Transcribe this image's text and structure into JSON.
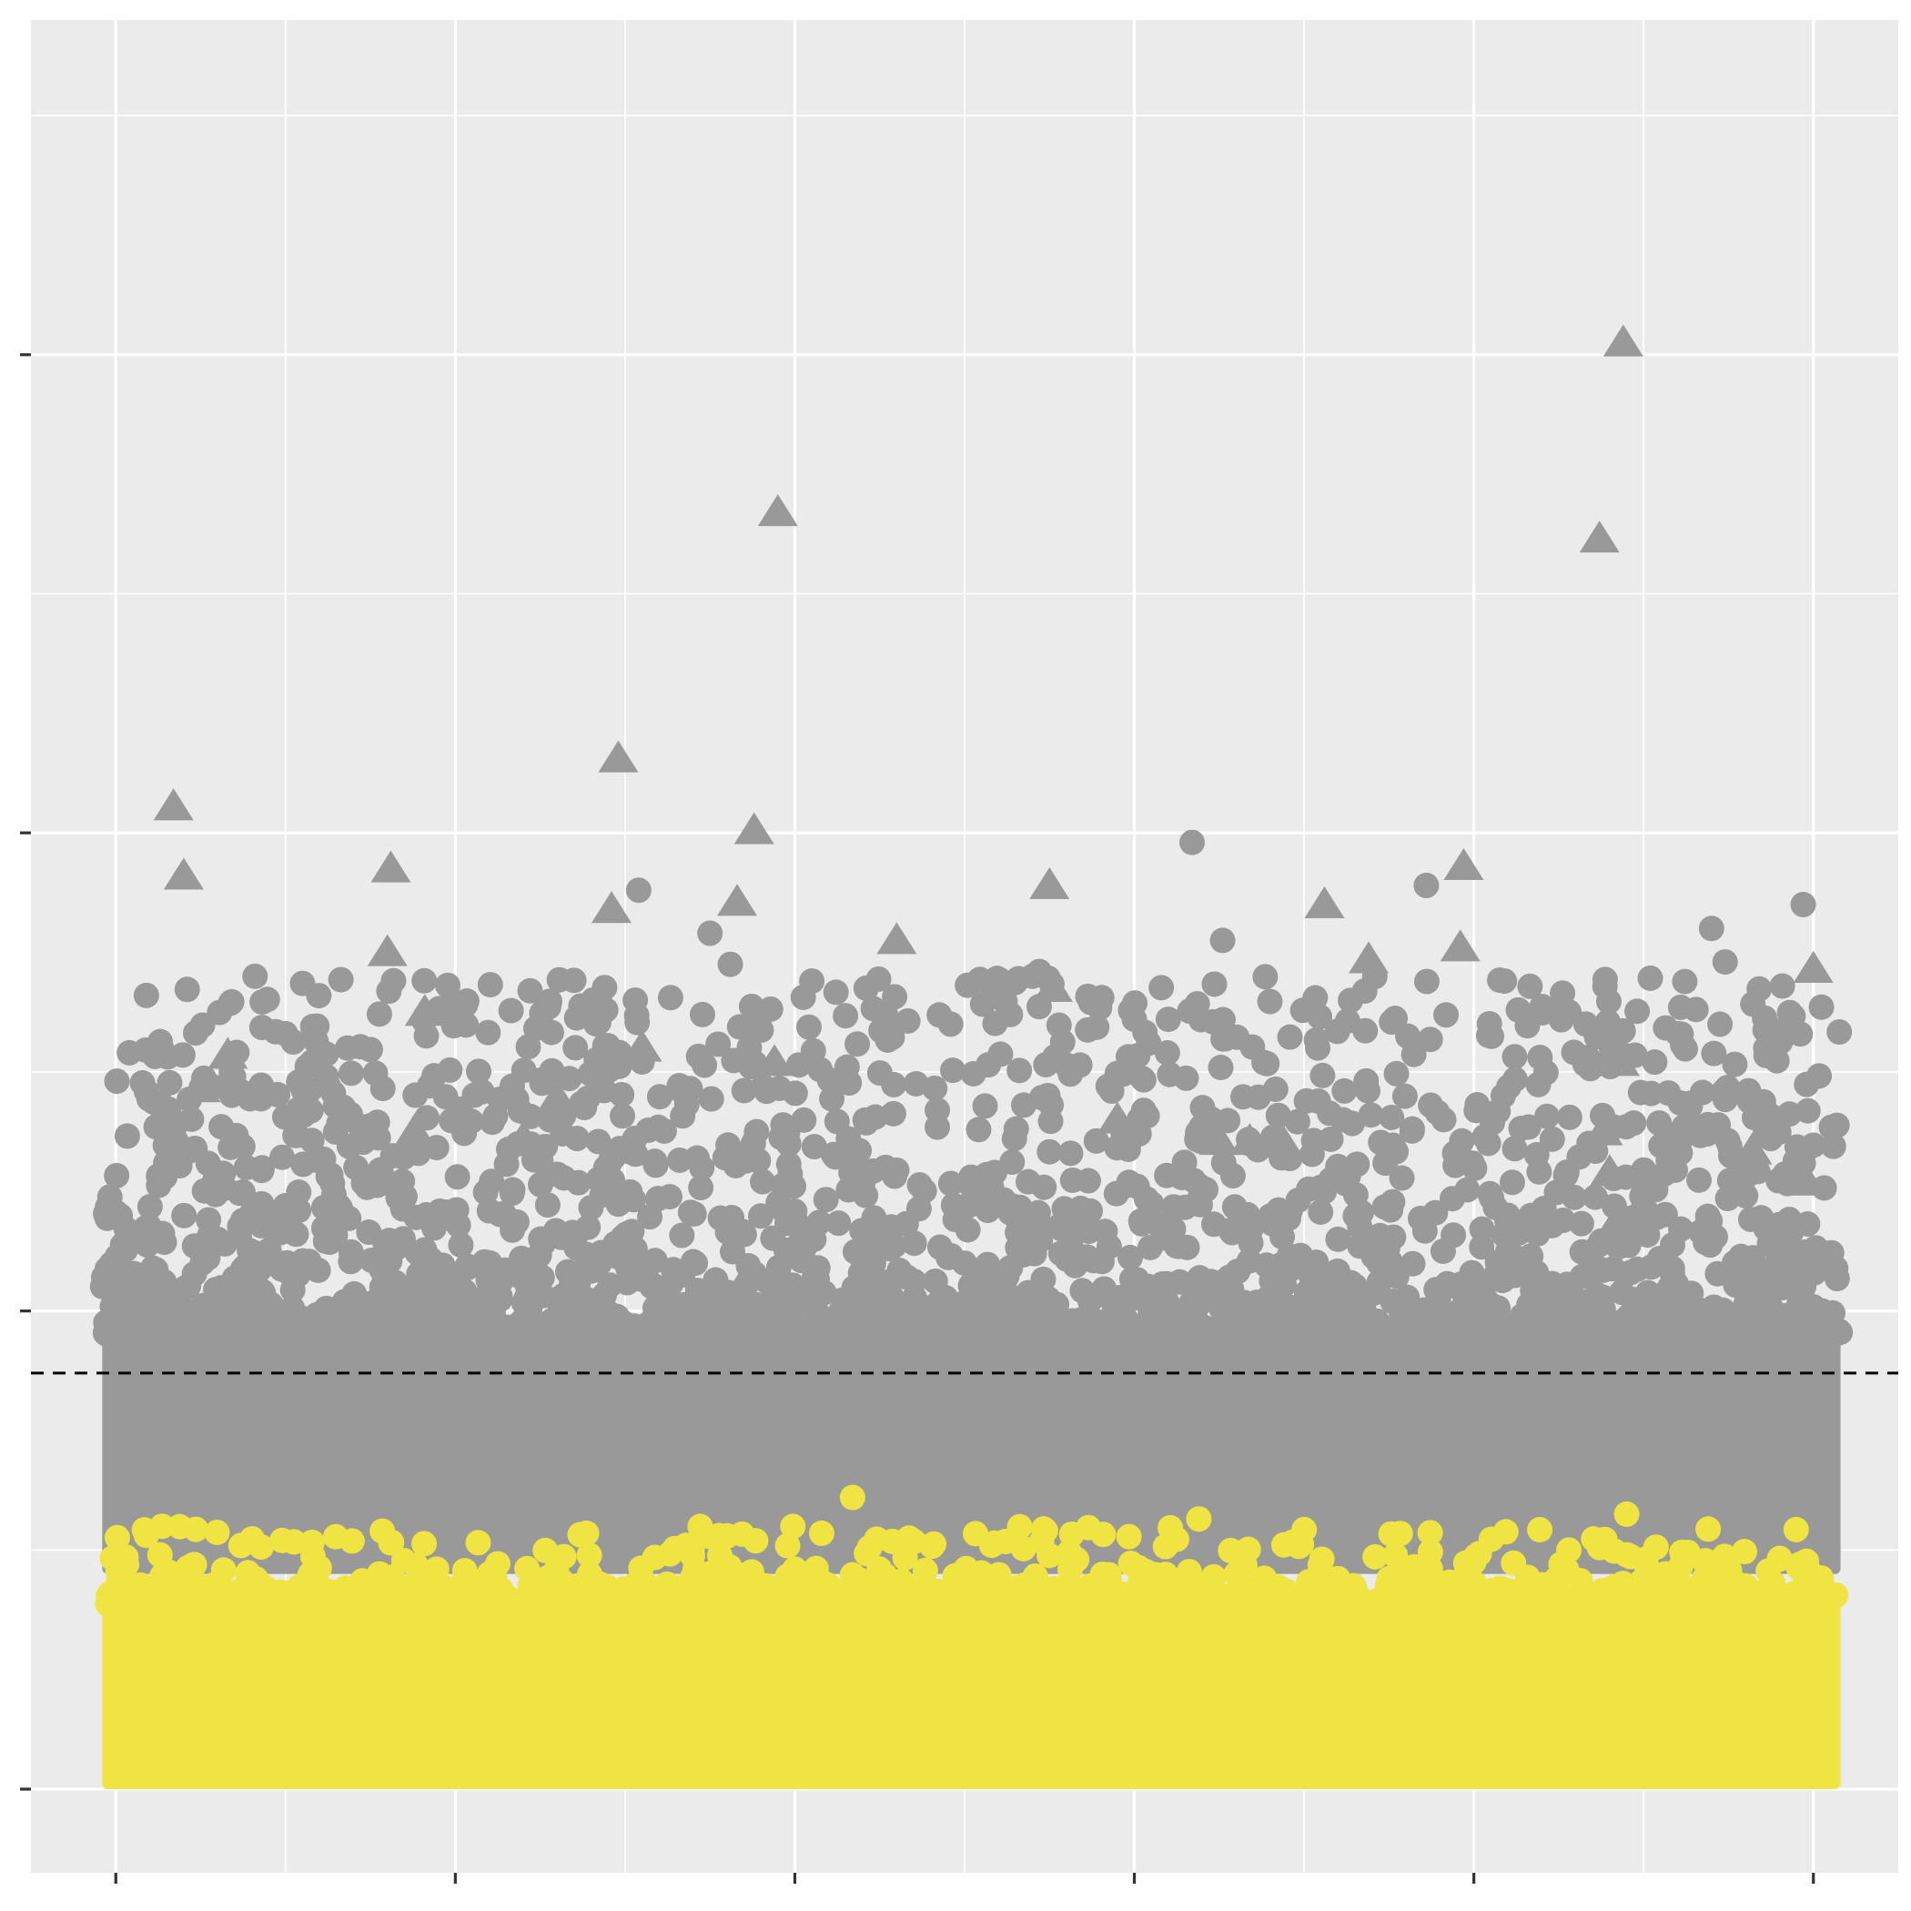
{
  "chart_data": {
    "type": "scatter",
    "title": "",
    "xlabel": "",
    "ylabel": "",
    "xlim": [
      -0.25,
      5.25
    ],
    "ylim": [
      -0.35,
      7.4
    ],
    "grid": true,
    "legend": "none",
    "threshold": {
      "y": 1.74,
      "style": "dashed",
      "color": "#000000"
    },
    "colors": {
      "panel": "#EBEBEB",
      "grid": "#FFFFFF",
      "gray": "#999999",
      "yellow": "#F0E442",
      "tick": "#333333"
    },
    "series": [
      {
        "marker": "triangle",
        "color": "#999999",
        "points": [
          [
            0.17,
            4.11
          ],
          [
            0.81,
            3.85
          ],
          [
            0.8,
            3.5
          ],
          [
            0.91,
            3.25
          ],
          [
            0.25,
            2.93
          ],
          [
            0.33,
            3.07
          ],
          [
            0.15,
            2.85
          ],
          [
            1.48,
            4.31
          ],
          [
            1.46,
            3.68
          ],
          [
            1.83,
            3.71
          ],
          [
            1.95,
            5.34
          ],
          [
            1.94,
            3.04
          ],
          [
            2.3,
            3.55
          ],
          [
            2.75,
            3.78
          ],
          [
            2.76,
            3.35
          ],
          [
            3.56,
            3.7
          ],
          [
            3.97,
            3.86
          ],
          [
            3.96,
            3.52
          ],
          [
            3.69,
            3.47
          ],
          [
            4.44,
            6.05
          ],
          [
            4.37,
            5.23
          ],
          [
            4.43,
            3.04
          ],
          [
            4.38,
            2.75
          ],
          [
            4.42,
            2.37
          ],
          [
            4.82,
            2.67
          ],
          [
            5.0,
            3.43
          ],
          [
            4.98,
            2.54
          ],
          [
            3.34,
            2.71
          ],
          [
            3.44,
            2.7
          ],
          [
            3.25,
            2.71
          ],
          [
            1.3,
            2.89
          ],
          [
            1.2,
            2.72
          ],
          [
            0.88,
            2.75
          ],
          [
            0.4,
            2.43
          ],
          [
            0.2,
            3.82
          ],
          [
            1.88,
            4.01
          ],
          [
            4.4,
            2.58
          ],
          [
            1.55,
            3.1
          ],
          [
            2.95,
            2.8
          ]
        ]
      },
      {
        "marker": "circle",
        "color": "#999999",
        "points": [
          [
            3.17,
            3.96
          ],
          [
            4.97,
            3.7
          ],
          [
            0.09,
            3.32
          ],
          [
            0.04,
            3.08
          ],
          [
            0.41,
            3.4
          ],
          [
            0.55,
            3.37
          ],
          [
            1.54,
            3.76
          ],
          [
            2.21,
            3.35
          ],
          [
            3.26,
            3.55
          ],
          [
            3.86,
            3.78
          ],
          [
            4.7,
            3.6
          ],
          [
            4.74,
            3.46
          ],
          [
            1.81,
            3.45
          ],
          [
            1.75,
            3.58
          ],
          [
            2.05,
            3.38
          ],
          [
            2.7,
            3.4
          ],
          [
            2.72,
            3.42
          ],
          [
            3.0,
            3.22
          ],
          [
            3.1,
            3.22
          ],
          [
            3.54,
            3.1
          ],
          [
            4.09,
            3.38
          ],
          [
            4.28,
            3.25
          ],
          [
            4.33,
            3.2
          ],
          [
            4.6,
            3.16
          ],
          [
            4.93,
            3.2
          ],
          [
            1.53,
            3.3
          ],
          [
            0.5,
            3.16
          ],
          [
            0.04,
            1.92
          ],
          [
            0.1,
            2.0
          ],
          [
            0.3,
            2.3
          ],
          [
            1.0,
            2.1
          ],
          [
            2.5,
            2.2
          ],
          [
            3.6,
            2.3
          ],
          [
            4.1,
            2.4
          ],
          [
            4.9,
            1.98
          ]
        ]
      },
      {
        "marker": "circle",
        "color": "#F0E442",
        "points": [
          [
            2.17,
            1.22
          ],
          [
            3.19,
            1.13
          ],
          [
            4.45,
            1.15
          ],
          [
            0.03,
            0.97
          ],
          [
            0.13,
            0.98
          ],
          [
            0.49,
            1.04
          ],
          [
            0.81,
            1.03
          ],
          [
            1.68,
            1.02
          ],
          [
            2.22,
            1.01
          ],
          [
            2.58,
            1.02
          ],
          [
            2.83,
            0.96
          ],
          [
            4.28,
            1.0
          ],
          [
            4.63,
            0.99
          ],
          [
            4.45,
            0.98
          ],
          [
            1.1,
            0.9
          ],
          [
            2.0,
            0.92
          ],
          [
            3.3,
            0.9
          ],
          [
            4.0,
            0.95
          ],
          [
            0.5,
            0.82
          ],
          [
            1.3,
            0.86
          ],
          [
            3.6,
            0.88
          ],
          [
            4.8,
            0.85
          ]
        ]
      }
    ],
    "dense_bands": [
      {
        "color": "#999999",
        "x": [
          -0.04,
          5.08
        ],
        "y": [
          0.9,
          1.95
        ]
      },
      {
        "color": "#F0E442",
        "x": [
          -0.04,
          5.08
        ],
        "y": [
          0.0,
          0.84
        ]
      }
    ]
  }
}
